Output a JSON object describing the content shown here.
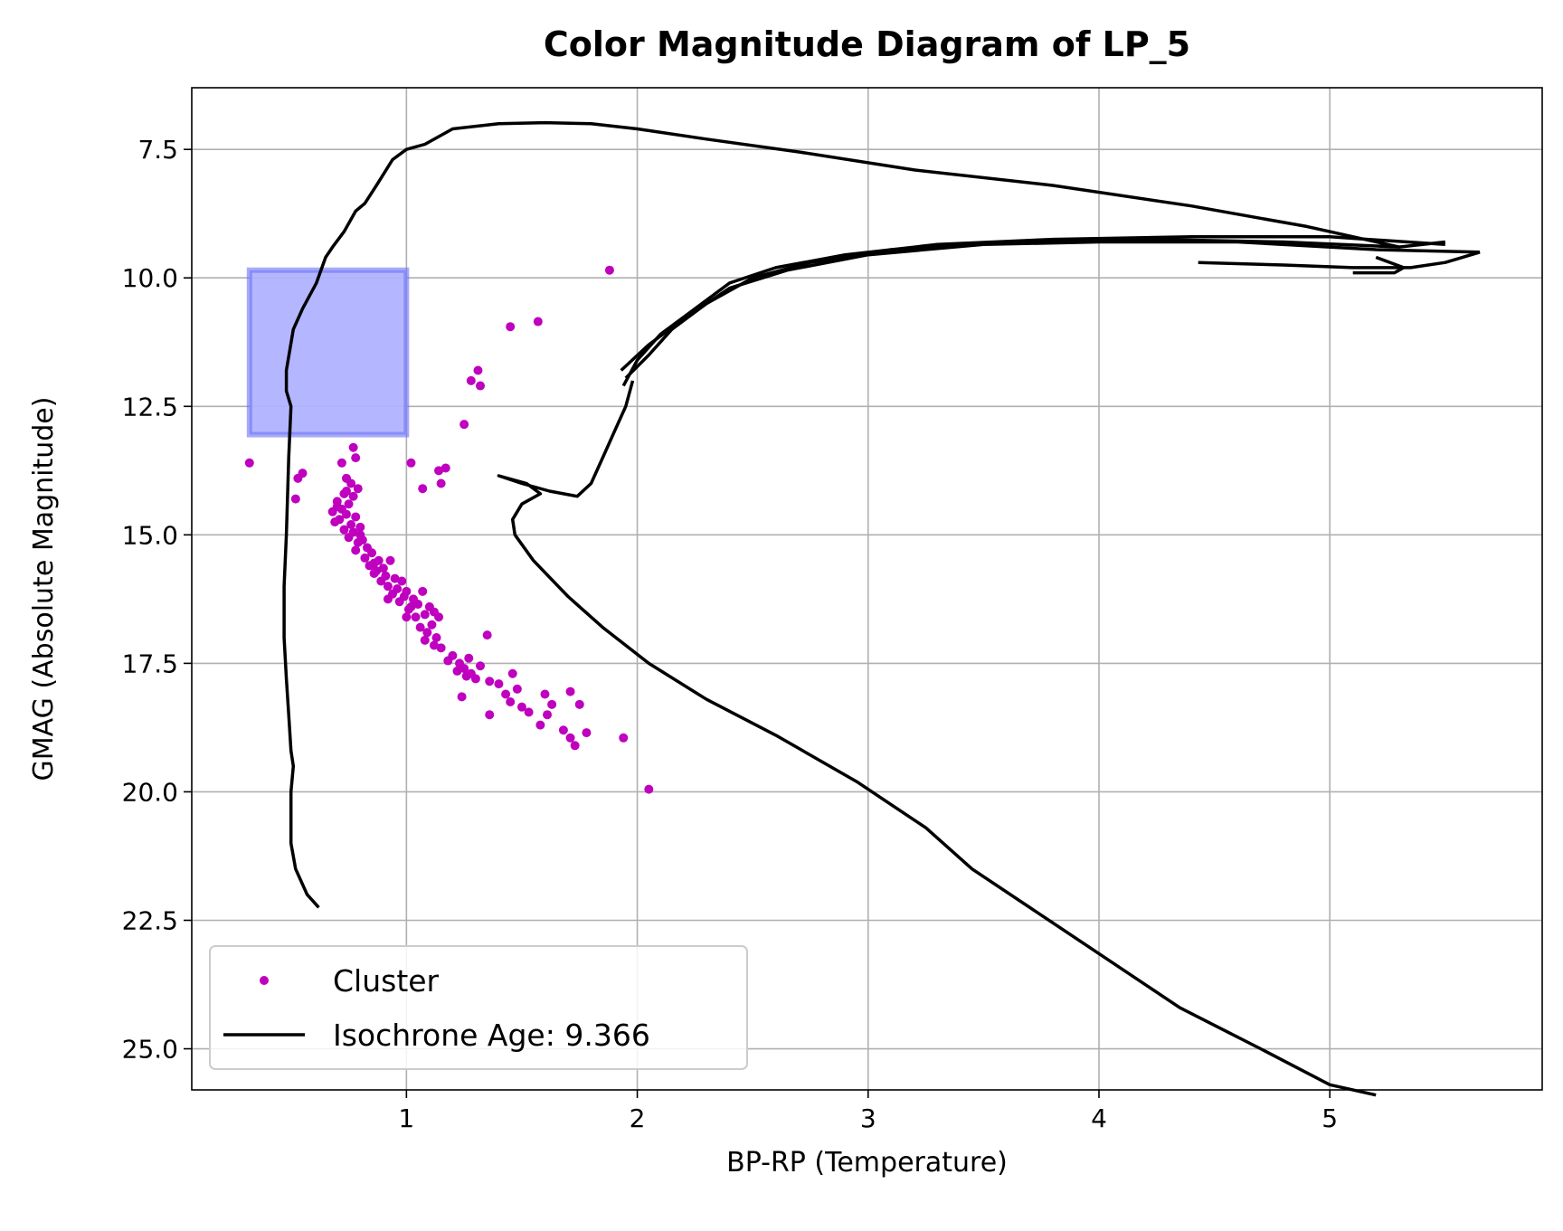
{
  "chart_data": {
    "type": "scatter",
    "title": "Color Magnitude Diagram of LP_5",
    "xlabel": "BP-RP (Temperature)",
    "ylabel": "GMAG (Absolute Magnitude)",
    "xlim": [
      0.07,
      5.92
    ],
    "ylim": [
      25.8,
      6.3
    ],
    "y_inverted": true,
    "grid": true,
    "legend_position": "lower-left",
    "xticks": [
      1,
      2,
      3,
      4,
      5
    ],
    "yticks": [
      7.5,
      10.0,
      12.5,
      15.0,
      17.5,
      20.0,
      22.5,
      25.0
    ],
    "colors": {
      "cluster": "#bf00bf",
      "isochrone": "#000000",
      "box_fill": "#b0b3ff",
      "box_edge": "#6d72f5"
    },
    "box": {
      "x": [
        0.32,
        1.0
      ],
      "y": [
        9.85,
        13.05
      ]
    },
    "legend": [
      {
        "label": "Cluster",
        "marker": "dot"
      },
      {
        "label": "Isochrone Age: 9.366",
        "marker": "line"
      }
    ],
    "series": [
      {
        "name": "Cluster",
        "kind": "scatter",
        "points": [
          [
            1.88,
            9.85
          ],
          [
            1.57,
            10.85
          ],
          [
            1.45,
            10.95
          ],
          [
            1.31,
            11.8
          ],
          [
            1.28,
            12.0
          ],
          [
            1.32,
            12.1
          ],
          [
            1.25,
            12.85
          ],
          [
            0.32,
            13.6
          ],
          [
            0.55,
            13.8
          ],
          [
            0.53,
            13.9
          ],
          [
            0.52,
            14.3
          ],
          [
            0.77,
            13.3
          ],
          [
            0.78,
            13.5
          ],
          [
            1.02,
            13.6
          ],
          [
            1.17,
            13.7
          ],
          [
            1.14,
            13.75
          ],
          [
            1.15,
            14.0
          ],
          [
            1.07,
            14.1
          ],
          [
            0.72,
            13.6
          ],
          [
            0.74,
            13.9
          ],
          [
            0.76,
            14.0
          ],
          [
            0.79,
            14.1
          ],
          [
            0.73,
            14.2
          ],
          [
            0.77,
            14.25
          ],
          [
            0.75,
            14.4
          ],
          [
            0.7,
            14.45
          ],
          [
            0.72,
            14.5
          ],
          [
            0.68,
            14.55
          ],
          [
            0.74,
            14.6
          ],
          [
            0.78,
            14.65
          ],
          [
            0.71,
            14.7
          ],
          [
            0.69,
            14.75
          ],
          [
            0.76,
            14.8
          ],
          [
            0.8,
            14.85
          ],
          [
            0.73,
            14.9
          ],
          [
            0.77,
            14.95
          ],
          [
            0.75,
            15.05
          ],
          [
            0.81,
            15.1
          ],
          [
            0.79,
            15.15
          ],
          [
            0.83,
            15.25
          ],
          [
            0.78,
            15.3
          ],
          [
            0.85,
            15.35
          ],
          [
            0.82,
            15.45
          ],
          [
            0.88,
            15.5
          ],
          [
            0.86,
            15.55
          ],
          [
            0.84,
            15.6
          ],
          [
            0.9,
            15.65
          ],
          [
            0.93,
            15.5
          ],
          [
            0.87,
            15.7
          ],
          [
            0.91,
            15.8
          ],
          [
            0.95,
            15.85
          ],
          [
            0.89,
            15.9
          ],
          [
            0.98,
            15.9
          ],
          [
            0.92,
            16.0
          ],
          [
            0.96,
            16.05
          ],
          [
            1.0,
            16.1
          ],
          [
            0.94,
            16.15
          ],
          [
            0.99,
            16.2
          ],
          [
            1.03,
            16.25
          ],
          [
            0.97,
            16.3
          ],
          [
            1.07,
            16.1
          ],
          [
            1.05,
            16.35
          ],
          [
            1.01,
            16.45
          ],
          [
            1.1,
            16.4
          ],
          [
            1.12,
            16.5
          ],
          [
            1.08,
            16.55
          ],
          [
            1.04,
            16.6
          ],
          [
            1.14,
            16.6
          ],
          [
            1.11,
            16.75
          ],
          [
            1.06,
            16.8
          ],
          [
            1.09,
            16.9
          ],
          [
            1.13,
            17.0
          ],
          [
            1.08,
            17.05
          ],
          [
            1.12,
            17.15
          ],
          [
            1.35,
            16.95
          ],
          [
            1.15,
            17.2
          ],
          [
            1.2,
            17.35
          ],
          [
            1.18,
            17.45
          ],
          [
            1.23,
            17.5
          ],
          [
            1.27,
            17.4
          ],
          [
            1.25,
            17.6
          ],
          [
            1.22,
            17.65
          ],
          [
            1.28,
            17.7
          ],
          [
            1.32,
            17.55
          ],
          [
            1.3,
            17.8
          ],
          [
            1.36,
            17.85
          ],
          [
            1.26,
            17.75
          ],
          [
            1.4,
            17.9
          ],
          [
            1.46,
            17.7
          ],
          [
            1.24,
            18.15
          ],
          [
            1.48,
            18.0
          ],
          [
            1.43,
            18.1
          ],
          [
            1.45,
            18.25
          ],
          [
            1.5,
            18.35
          ],
          [
            1.36,
            18.5
          ],
          [
            1.53,
            18.45
          ],
          [
            1.6,
            18.1
          ],
          [
            1.63,
            18.3
          ],
          [
            1.71,
            18.05
          ],
          [
            1.75,
            18.3
          ],
          [
            1.61,
            18.5
          ],
          [
            1.58,
            18.7
          ],
          [
            1.68,
            18.8
          ],
          [
            1.71,
            18.95
          ],
          [
            1.73,
            19.1
          ],
          [
            1.78,
            18.85
          ],
          [
            1.94,
            18.95
          ],
          [
            2.05,
            19.95
          ],
          [
            0.7,
            14.35
          ],
          [
            0.74,
            14.15
          ],
          [
            0.8,
            15.0
          ],
          [
            0.86,
            15.75
          ],
          [
            0.92,
            16.25
          ],
          [
            1.0,
            16.6
          ],
          [
            1.02,
            16.4
          ]
        ]
      },
      {
        "name": "Isochrone Age: 9.366",
        "kind": "line",
        "segments": [
          [
            [
              0.62,
              22.25
            ],
            [
              0.57,
              22.0
            ],
            [
              0.52,
              21.5
            ],
            [
              0.5,
              21.0
            ],
            [
              0.5,
              20.6
            ],
            [
              0.5,
              20.0
            ],
            [
              0.51,
              19.5
            ],
            [
              0.5,
              19.2
            ],
            [
              0.49,
              18.5
            ],
            [
              0.48,
              17.8
            ],
            [
              0.47,
              17.0
            ],
            [
              0.47,
              16.0
            ],
            [
              0.48,
              15.0
            ],
            [
              0.49,
              13.5
            ],
            [
              0.5,
              12.5
            ],
            [
              0.48,
              12.2
            ],
            [
              0.48,
              11.8
            ],
            [
              0.51,
              11.0
            ],
            [
              0.55,
              10.6
            ],
            [
              0.61,
              10.1
            ],
            [
              0.65,
              9.6
            ],
            [
              0.68,
              9.4
            ],
            [
              0.73,
              9.1
            ],
            [
              0.78,
              8.7
            ],
            [
              0.82,
              8.55
            ],
            [
              0.87,
              8.2
            ],
            [
              0.94,
              7.7
            ],
            [
              1.0,
              7.5
            ],
            [
              1.08,
              7.4
            ],
            [
              1.2,
              7.1
            ],
            [
              1.4,
              7.0
            ],
            [
              1.6,
              6.98
            ],
            [
              1.8,
              7.0
            ],
            [
              2.0,
              7.1
            ],
            [
              2.3,
              7.3
            ],
            [
              2.7,
              7.55
            ],
            [
              3.2,
              7.9
            ],
            [
              3.8,
              8.2
            ],
            [
              4.4,
              8.6
            ],
            [
              4.9,
              9.0
            ],
            [
              5.3,
              9.4
            ]
          ],
          [
            [
              1.94,
              12.1
            ],
            [
              2.0,
              11.6
            ],
            [
              2.1,
              11.1
            ],
            [
              2.25,
              10.6
            ],
            [
              2.4,
              10.1
            ],
            [
              2.6,
              9.8
            ],
            [
              2.9,
              9.55
            ],
            [
              3.3,
              9.35
            ],
            [
              3.8,
              9.25
            ],
            [
              4.4,
              9.2
            ],
            [
              5.0,
              9.2
            ],
            [
              5.5,
              9.35
            ]
          ],
          [
            [
              1.95,
              11.95
            ],
            [
              2.05,
              11.5
            ],
            [
              2.15,
              11.0
            ],
            [
              2.3,
              10.5
            ],
            [
              2.5,
              10.0
            ],
            [
              2.75,
              9.7
            ],
            [
              3.1,
              9.45
            ],
            [
              3.6,
              9.3
            ],
            [
              4.2,
              9.25
            ],
            [
              4.8,
              9.3
            ],
            [
              5.3,
              9.4
            ],
            [
              5.5,
              9.3
            ]
          ],
          [
            [
              1.93,
              11.8
            ],
            [
              2.05,
              11.3
            ],
            [
              2.2,
              10.8
            ],
            [
              2.4,
              10.2
            ],
            [
              2.65,
              9.85
            ],
            [
              3.0,
              9.55
            ],
            [
              3.5,
              9.35
            ],
            [
              4.0,
              9.3
            ],
            [
              4.6,
              9.3
            ],
            [
              5.2,
              9.45
            ],
            [
              5.65,
              9.5
            ]
          ],
          [
            [
              5.65,
              9.5
            ],
            [
              5.5,
              9.7
            ],
            [
              5.35,
              9.8
            ],
            [
              5.1,
              9.8
            ],
            [
              4.8,
              9.75
            ],
            [
              4.43,
              9.7
            ]
          ],
          [
            [
              5.2,
              9.6
            ],
            [
              5.32,
              9.8
            ],
            [
              5.28,
              9.9
            ],
            [
              5.1,
              9.9
            ]
          ],
          [
            [
              1.98,
              12.0
            ],
            [
              1.95,
              12.5
            ],
            [
              1.9,
              13.0
            ],
            [
              1.85,
              13.5
            ],
            [
              1.8,
              14.0
            ],
            [
              1.74,
              14.25
            ],
            [
              1.62,
              14.15
            ],
            [
              1.5,
              14.0
            ],
            [
              1.4,
              13.85
            ],
            [
              1.52,
              14.0
            ],
            [
              1.58,
              14.2
            ],
            [
              1.5,
              14.4
            ],
            [
              1.46,
              14.7
            ],
            [
              1.47,
              15.0
            ],
            [
              1.55,
              15.5
            ],
            [
              1.7,
              16.2
            ],
            [
              1.85,
              16.8
            ],
            [
              2.05,
              17.5
            ],
            [
              2.3,
              18.2
            ],
            [
              2.6,
              18.9
            ],
            [
              2.95,
              19.8
            ],
            [
              3.25,
              20.7
            ],
            [
              3.45,
              21.5
            ],
            [
              3.75,
              22.4
            ],
            [
              4.05,
              23.3
            ],
            [
              4.35,
              24.2
            ],
            [
              4.7,
              25.0
            ],
            [
              5.0,
              25.7
            ],
            [
              5.2,
              25.9
            ]
          ]
        ]
      }
    ]
  }
}
